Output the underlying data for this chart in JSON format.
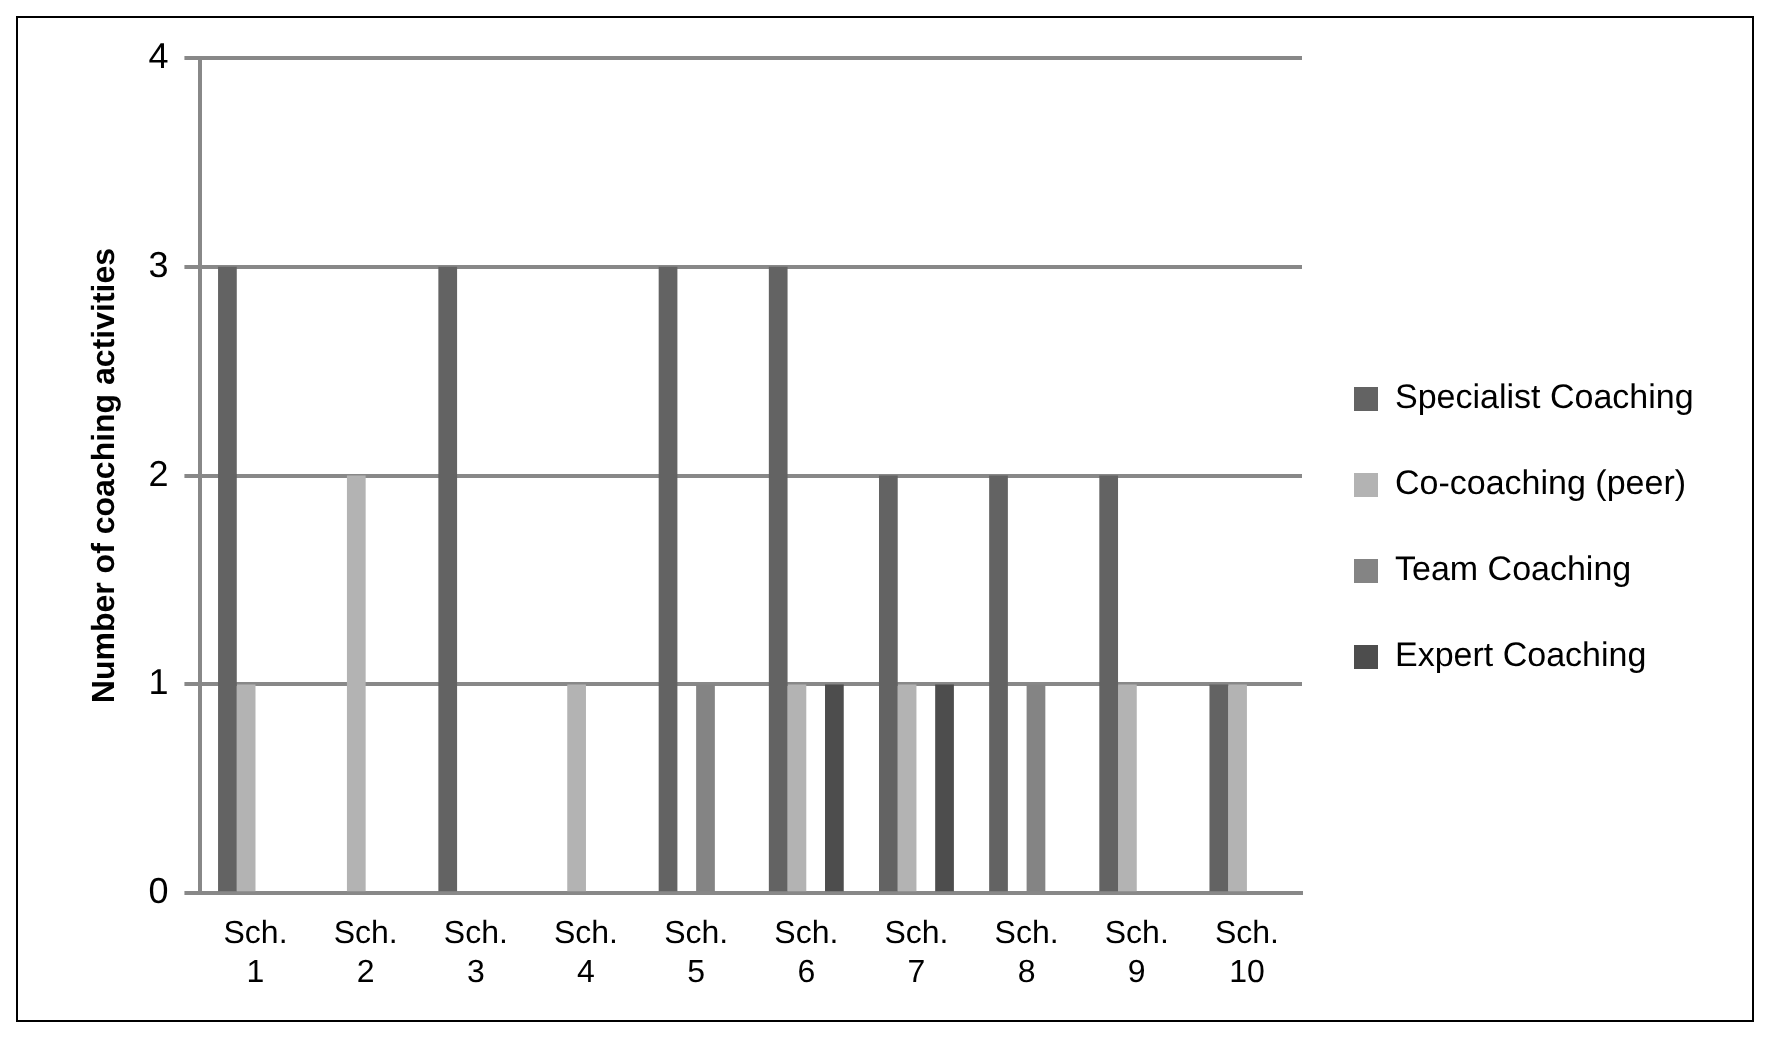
{
  "chart_data": {
    "type": "bar",
    "ylabel": "Number of coaching activities",
    "categories": [
      "Sch. 1",
      "Sch. 2",
      "Sch. 3",
      "Sch. 4",
      "Sch. 5",
      "Sch. 6",
      "Sch. 7",
      "Sch. 8",
      "Sch. 9",
      "Sch. 10"
    ],
    "series": [
      {
        "name": "Specialist Coaching",
        "color": "#636363",
        "values": [
          3,
          0,
          3,
          0,
          3,
          3,
          2,
          2,
          2,
          1
        ]
      },
      {
        "name": "Co-coaching (peer)",
        "color": "#b3b3b3",
        "values": [
          1,
          2,
          0,
          1,
          0,
          1,
          1,
          0,
          1,
          1
        ]
      },
      {
        "name": "Team Coaching",
        "color": "#848484",
        "values": [
          0,
          0,
          0,
          0,
          1,
          0,
          0,
          1,
          0,
          0
        ]
      },
      {
        "name": "Expert Coaching",
        "color": "#4d4d4d",
        "values": [
          0,
          0,
          0,
          0,
          0,
          1,
          1,
          0,
          0,
          0
        ]
      }
    ],
    "ylim": [
      0,
      4
    ],
    "yticks": [
      0,
      1,
      2,
      3,
      4
    ],
    "grid": "y",
    "legend": "right"
  }
}
